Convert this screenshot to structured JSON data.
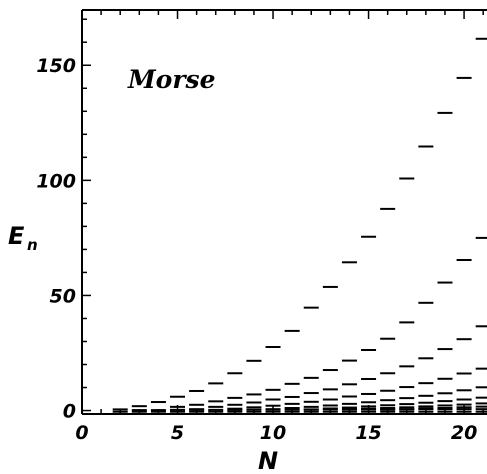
{
  "chart_data": {
    "type": "scatter",
    "marker": "horizontal-dash",
    "title": "",
    "annotation": "Morse",
    "xlabel": "N",
    "ylabel_main": "E",
    "ylabel_sub": "n",
    "xlim": [
      0,
      21.2
    ],
    "ylim": [
      -1.5,
      174
    ],
    "xticks": [
      0,
      5,
      10,
      15,
      20
    ],
    "xtick_labels": [
      "0",
      "5",
      "10",
      "15",
      "20"
    ],
    "yticks": [
      0,
      50,
      100,
      150
    ],
    "ytick_labels": [
      "0",
      "50",
      "100",
      "150"
    ],
    "x_minor_step": 1,
    "y_minor_step": 10,
    "grid": false,
    "axes_color": "#000000",
    "marker_color": "#000000",
    "series": [
      {
        "x": [
          2,
          3,
          4,
          5,
          6,
          7,
          8,
          9,
          10,
          11,
          12,
          13,
          14,
          15,
          16,
          17,
          18,
          19,
          20,
          21
        ],
        "values": [
          0.5,
          1.9,
          3.7,
          6.0,
          8.5,
          11.8,
          16.2,
          21.6,
          27.6,
          34.6,
          44.7,
          53.7,
          64.4,
          75.5,
          87.6,
          100.8,
          114.7,
          129.3,
          144.5,
          161.5
        ]
      },
      {
        "x": [
          5,
          6,
          7,
          8,
          9,
          10,
          11,
          12,
          13,
          14,
          15,
          16,
          17,
          18,
          19,
          20,
          21
        ],
        "values": [
          1.6,
          2.5,
          4.0,
          5.5,
          7.0,
          9.0,
          11.6,
          14.2,
          17.6,
          21.7,
          26.3,
          31.2,
          38.3,
          46.8,
          55.6,
          65.4,
          75.0
        ]
      },
      {
        "x": [
          6,
          7,
          8,
          9,
          10,
          11,
          12,
          13,
          14,
          15,
          16,
          17,
          18,
          19,
          20,
          21
        ],
        "values": [
          0.6,
          1.6,
          2.5,
          3.5,
          4.8,
          5.9,
          7.6,
          9.2,
          11.4,
          13.7,
          16.2,
          19.2,
          22.7,
          26.7,
          31.0,
          36.6
        ]
      },
      {
        "x": [
          8,
          9,
          10,
          11,
          12,
          13,
          14,
          15,
          16,
          17,
          18,
          19,
          20,
          21
        ],
        "values": [
          0.8,
          1.4,
          2.1,
          2.9,
          3.8,
          4.8,
          6.1,
          7.2,
          8.6,
          10.2,
          11.9,
          13.8,
          16.1,
          18.2
        ]
      },
      {
        "x": [
          10,
          11,
          12,
          13,
          14,
          15,
          16,
          17,
          18,
          19,
          20,
          21
        ],
        "values": [
          0.6,
          1.1,
          1.6,
          2.2,
          2.9,
          3.6,
          4.5,
          5.4,
          6.4,
          7.5,
          8.8,
          10.1
        ]
      },
      {
        "x": [
          12,
          13,
          14,
          15,
          16,
          17,
          18,
          19,
          20,
          21
        ],
        "values": [
          0.5,
          0.9,
          1.3,
          1.8,
          2.3,
          2.8,
          3.4,
          4.1,
          4.8,
          5.6
        ]
      },
      {
        "x": [
          14,
          15,
          16,
          17,
          18,
          19,
          20,
          21
        ],
        "values": [
          0.5,
          0.8,
          1.1,
          1.4,
          1.8,
          2.2,
          2.6,
          3.1
        ]
      },
      {
        "x": [
          16,
          17,
          18,
          19,
          20,
          21
        ],
        "values": [
          0.4,
          0.6,
          0.9,
          1.1,
          1.4,
          1.7
        ]
      },
      {
        "x": [
          3,
          4,
          5,
          6,
          7,
          8,
          9,
          10,
          11,
          12,
          13,
          14,
          15,
          16,
          17,
          18,
          19,
          20,
          21
        ],
        "values": [
          0.2,
          0.2,
          0.3,
          0.3,
          0.3,
          0.3,
          0.4,
          0.4,
          0.4,
          0.4,
          0.5,
          0.5,
          0.5,
          0.5,
          0.5,
          0.6,
          0.6,
          0.6,
          0.6
        ]
      },
      {
        "x": [
          2,
          3,
          4,
          5,
          6,
          7,
          8,
          9,
          10,
          11,
          12,
          13,
          14,
          15,
          16,
          17,
          18,
          19,
          20,
          21
        ],
        "values": [
          -0.5,
          -0.5,
          -0.5,
          -0.5,
          -0.5,
          -0.5,
          -0.5,
          -0.5,
          -0.5,
          -0.5,
          -0.5,
          -0.5,
          -0.5,
          -0.5,
          -0.5,
          -0.5,
          -0.5,
          -0.5,
          -0.5,
          -0.5
        ]
      }
    ]
  }
}
